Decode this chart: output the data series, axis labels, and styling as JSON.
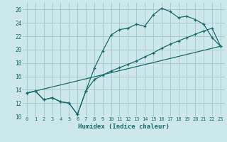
{
  "title": "",
  "xlabel": "Humidex (Indice chaleur)",
  "bg_color": "#cce8ea",
  "grid_color": "#aacccc",
  "line_color": "#1a6b6b",
  "xlim": [
    -0.5,
    23.5
  ],
  "ylim": [
    10,
    27
  ],
  "xticks": [
    0,
    1,
    2,
    3,
    4,
    5,
    6,
    7,
    8,
    9,
    10,
    11,
    12,
    13,
    14,
    15,
    16,
    17,
    18,
    19,
    20,
    21,
    22,
    23
  ],
  "yticks": [
    10,
    12,
    14,
    16,
    18,
    20,
    22,
    24,
    26
  ],
  "line1_x": [
    0,
    1,
    2,
    3,
    4,
    5,
    6,
    7,
    8,
    9,
    10,
    11,
    12,
    13,
    14,
    15,
    16,
    17,
    18,
    19,
    20,
    21,
    22,
    23
  ],
  "line1_y": [
    13.5,
    13.8,
    12.5,
    12.8,
    12.2,
    12.0,
    10.3,
    13.8,
    17.2,
    19.8,
    22.2,
    23.0,
    23.2,
    23.8,
    23.5,
    25.2,
    26.2,
    25.7,
    24.8,
    25.0,
    24.5,
    23.8,
    21.8,
    20.5
  ],
  "line2_x": [
    0,
    1,
    2,
    3,
    4,
    5,
    6,
    7,
    8,
    9,
    10,
    11,
    12,
    13,
    14,
    15,
    16,
    17,
    18,
    19,
    20,
    21,
    22,
    23
  ],
  "line2_y": [
    13.5,
    13.8,
    12.5,
    12.8,
    12.2,
    12.0,
    10.3,
    13.8,
    15.5,
    16.2,
    16.8,
    17.3,
    17.8,
    18.3,
    18.9,
    19.5,
    20.2,
    20.8,
    21.3,
    21.8,
    22.3,
    22.8,
    23.2,
    20.5
  ],
  "line3_x": [
    0,
    23
  ],
  "line3_y": [
    13.5,
    20.5
  ]
}
